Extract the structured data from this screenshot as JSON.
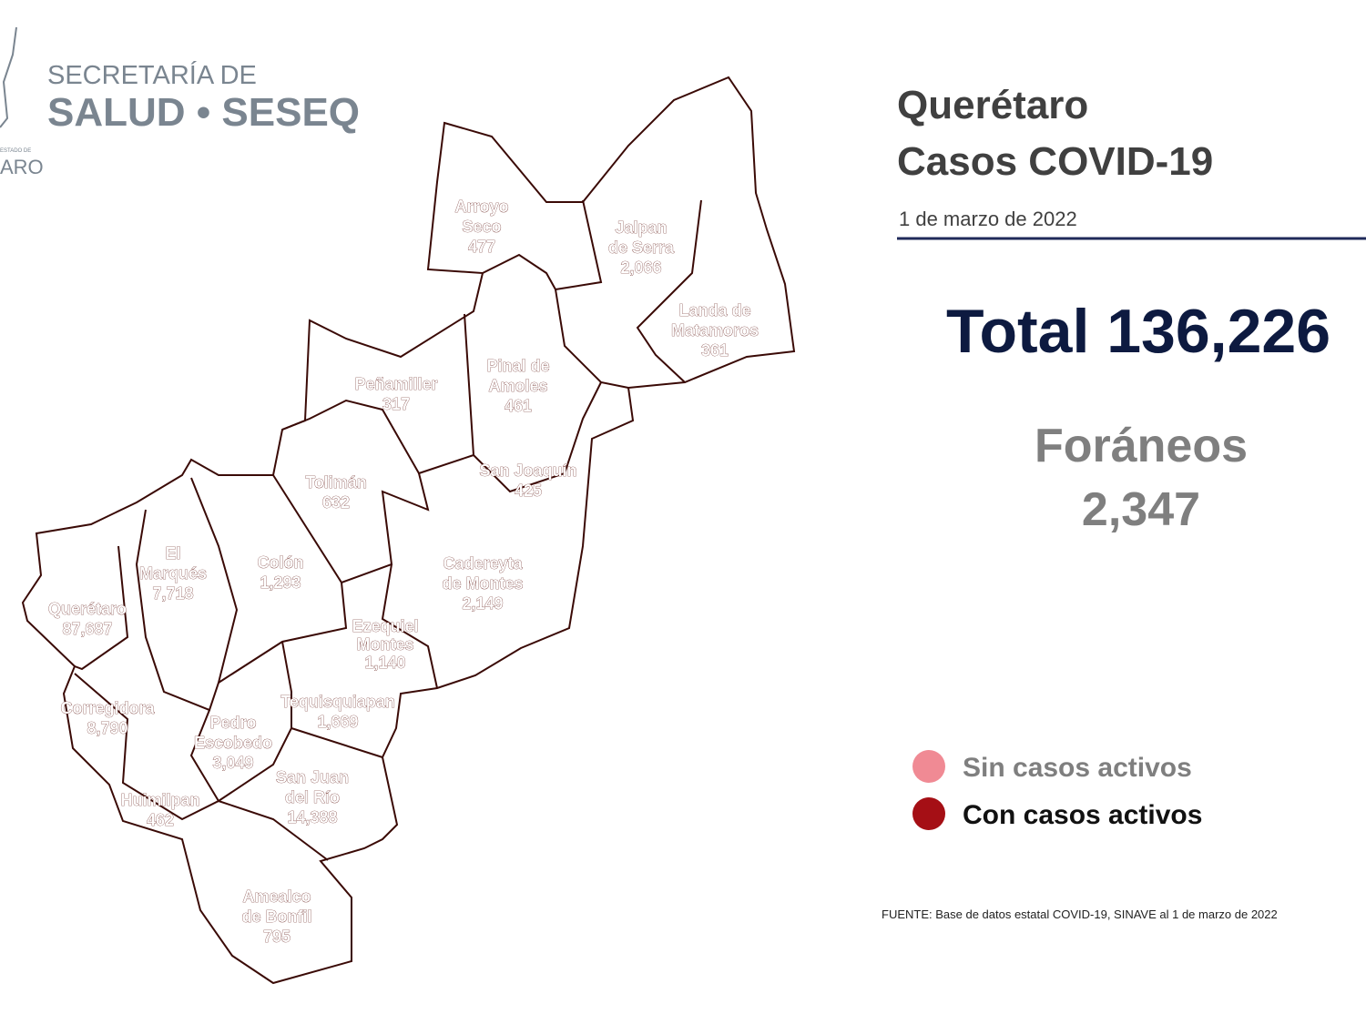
{
  "logo": {
    "line1": "SECRETARÍA DE",
    "line2": "SALUD • SESEQ",
    "state_fragment": "ARO",
    "state_caption": "ESTADO DE"
  },
  "header": {
    "title_line1": "Querétaro",
    "title_line2": "Casos COVID-19",
    "date": "1 de marzo de 2022"
  },
  "total": "Total 136,226",
  "foraneos": {
    "label": "Foráneos",
    "value": "2,347"
  },
  "legend": [
    {
      "label": "Sin casos activos",
      "color": "#f08a94"
    },
    {
      "label": "Con casos activos",
      "color": "#a50f15"
    }
  ],
  "source": "FUENTE: Base de datos estatal COVID-19, SINAVE al 1 de marzo de 2022",
  "map": {
    "fill": "#a3281f",
    "municipalities": [
      {
        "name_lines": [
          "Arroyo",
          "Seco"
        ],
        "cases": "477"
      },
      {
        "name_lines": [
          "Jalpan",
          "de Serra"
        ],
        "cases": "2,066"
      },
      {
        "name_lines": [
          "Landa de",
          "Matamoros"
        ],
        "cases": "361"
      },
      {
        "name_lines": [
          "Pinal de",
          "Amoles"
        ],
        "cases": "461"
      },
      {
        "name_lines": [
          "Peñamiller"
        ],
        "cases": "317"
      },
      {
        "name_lines": [
          "San Joaquín"
        ],
        "cases": "425"
      },
      {
        "name_lines": [
          "Tolimán"
        ],
        "cases": "632"
      },
      {
        "name_lines": [
          "Colón"
        ],
        "cases": "1,293"
      },
      {
        "name_lines": [
          "El",
          "Marqués"
        ],
        "cases": "7,718"
      },
      {
        "name_lines": [
          "Cadereyta",
          "de Montes"
        ],
        "cases": "2,149"
      },
      {
        "name_lines": [
          "Querétaro"
        ],
        "cases": "87,687"
      },
      {
        "name_lines": [
          "Ezequiel",
          "Montes"
        ],
        "cases": "1,140"
      },
      {
        "name_lines": [
          "Corregidora"
        ],
        "cases": "8,790"
      },
      {
        "name_lines": [
          "Tequisquiapan"
        ],
        "cases": "1,669"
      },
      {
        "name_lines": [
          "Pedro",
          "Escobedo"
        ],
        "cases": "3,049"
      },
      {
        "name_lines": [
          "San Juan",
          "del Río"
        ],
        "cases": "14,388"
      },
      {
        "name_lines": [
          "Huimilpan"
        ],
        "cases": "462"
      },
      {
        "name_lines": [
          "Amealco",
          "de Bonfil"
        ],
        "cases": "795"
      }
    ]
  }
}
